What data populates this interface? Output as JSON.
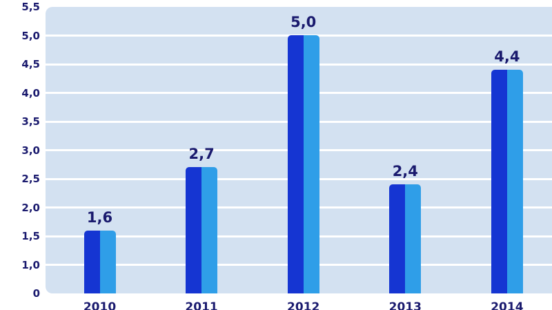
{
  "chart_data": {
    "type": "bar",
    "title": "",
    "categories": [
      "2010",
      "2011",
      "2012",
      "2013",
      "2014"
    ],
    "values": [
      1.6,
      2.7,
      5.0,
      2.4,
      4.4
    ],
    "value_labels": [
      "1,6",
      "2,7",
      "5,0",
      "2,4",
      "4,4"
    ],
    "y_tick_labels": [
      "5,5",
      "5,0",
      "4,5",
      "4,0",
      "3,5",
      "3,0",
      "2,5",
      "2,0",
      "1,5",
      "1,0",
      "0"
    ],
    "y_axis": {
      "top_value": 5.5,
      "baseline_value": 0.5,
      "tick_step": 0.5,
      "baseline_label": "0",
      "decimal_separator": "comma"
    },
    "grid": "horizontal",
    "legend": "none",
    "colors": {
      "bar_left": "#1535d2",
      "bar_right": "#2f9ee8",
      "plot_background": "#d3e1f1",
      "gridline": "#ffffff",
      "label_text": "#1a1a6e",
      "page_background": "#ffffff"
    }
  }
}
